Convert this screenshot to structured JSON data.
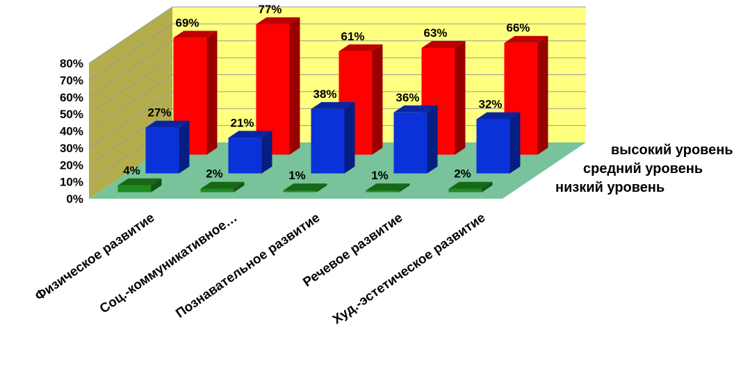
{
  "chart_data": {
    "type": "bar",
    "subtype": "3d-clustered-depth",
    "title": "",
    "categories": [
      "Физическое развитие",
      "Соц.-коммуникативное…",
      "Познавательное развитие",
      "Речевое развитие",
      "Худ.-эстетическое развитие"
    ],
    "series": [
      {
        "name": "низкий уровень",
        "values": [
          4,
          2,
          1,
          1,
          2
        ],
        "color": "#1f8a1f"
      },
      {
        "name": "средний уровень",
        "values": [
          27,
          21,
          38,
          36,
          32
        ],
        "color": "#0a32d8"
      },
      {
        "name": "высокий уровень",
        "values": [
          69,
          77,
          61,
          63,
          66
        ],
        "color": "#ff0000"
      }
    ],
    "data_labels": [
      [
        "4%",
        "2%",
        "1%",
        "1%",
        "2%"
      ],
      [
        "27%",
        "21%",
        "38%",
        "36%",
        "32%"
      ],
      [
        "69%",
        "77%",
        "61%",
        "63%",
        "66%"
      ]
    ],
    "y_ticks": [
      "0%",
      "10%",
      "20%",
      "30%",
      "40%",
      "50%",
      "60%",
      "70%",
      "80%"
    ],
    "ylim": [
      0,
      80
    ],
    "grid": true,
    "legend_placement": "right",
    "colors": {
      "back_wall": "#ffff80",
      "side_wall": "#b3ad4d",
      "floor": "#78c39b",
      "grid": "#9a9a9a"
    }
  }
}
